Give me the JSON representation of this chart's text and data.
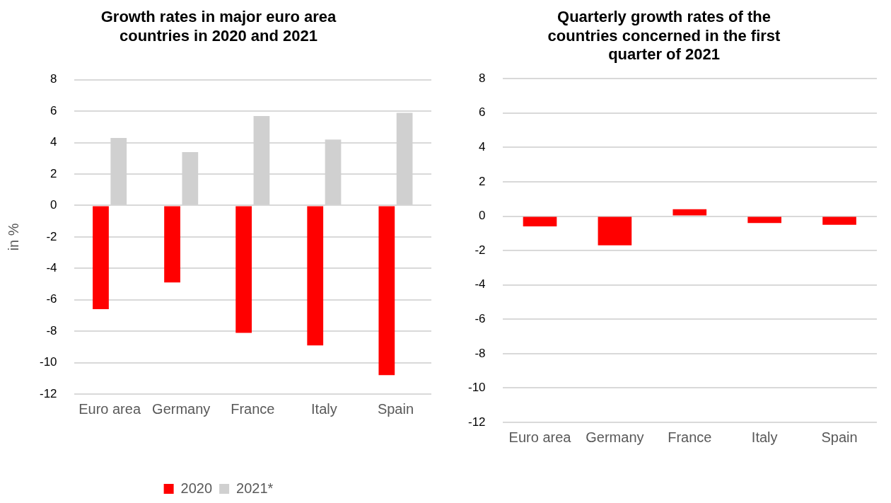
{
  "chart_data": [
    {
      "type": "bar",
      "title": "Growth rates in major euro area countries in 2020 and 2021",
      "ylabel": "in %",
      "categories": [
        "Euro area",
        "Germany",
        "France",
        "Italy",
        "Spain"
      ],
      "series": [
        {
          "name": "2020",
          "color": "#ff0000",
          "values": [
            -6.6,
            -4.9,
            -8.1,
            -8.9,
            -10.8
          ]
        },
        {
          "name": "2021*",
          "color": "#d0d0d0",
          "values": [
            4.3,
            3.4,
            5.7,
            4.2,
            5.9
          ]
        }
      ],
      "ylim": [
        -12,
        8
      ],
      "yticks": [
        -12,
        -10,
        -8,
        -6,
        -4,
        -2,
        0,
        2,
        4,
        6,
        8
      ],
      "grid": "y",
      "legend": "bottom"
    },
    {
      "type": "bar",
      "title": "Quarterly growth rates of the countries concerned in the first quarter of 2021",
      "categories": [
        "Euro area",
        "Germany",
        "France",
        "Italy",
        "Spain"
      ],
      "series": [
        {
          "color": "#ff0000",
          "values": [
            -0.6,
            -1.7,
            0.4,
            -0.4,
            -0.5
          ]
        }
      ],
      "ylim": [
        -12,
        8
      ],
      "yticks": [
        -12,
        -10,
        -8,
        -6,
        -4,
        -2,
        0,
        2,
        4,
        6,
        8
      ],
      "grid": "y"
    }
  ]
}
